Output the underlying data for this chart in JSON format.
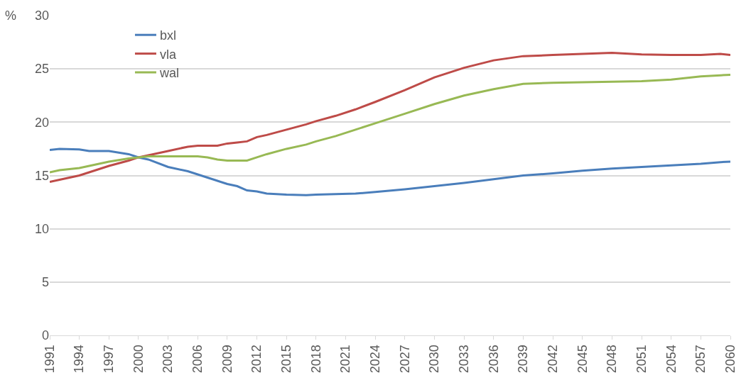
{
  "chart_data": {
    "type": "line",
    "ylabel": "%",
    "x": [
      1991,
      1992,
      1994,
      1995,
      1997,
      1999,
      2000,
      2001,
      2003,
      2005,
      2006,
      2007,
      2008,
      2009,
      2010,
      2011,
      2012,
      2013,
      2015,
      2017,
      2018,
      2020,
      2022,
      2024,
      2027,
      2030,
      2033,
      2036,
      2039,
      2042,
      2045,
      2048,
      2051,
      2054,
      2057,
      2059,
      2060
    ],
    "series": [
      {
        "name": "bxl",
        "color": "#4a7ebb",
        "values": [
          17.4,
          17.5,
          17.45,
          17.3,
          17.3,
          17.0,
          16.7,
          16.5,
          15.8,
          15.4,
          15.1,
          14.8,
          14.5,
          14.2,
          14.0,
          13.6,
          13.5,
          13.3,
          13.2,
          13.15,
          13.2,
          13.25,
          13.3,
          13.45,
          13.7,
          14.0,
          14.3,
          14.65,
          15.0,
          15.2,
          15.45,
          15.65,
          15.8,
          15.95,
          16.1,
          16.25,
          16.3
        ]
      },
      {
        "name": "vla",
        "color": "#be4b48",
        "values": [
          14.4,
          14.6,
          15.0,
          15.3,
          15.9,
          16.4,
          16.7,
          16.9,
          17.3,
          17.7,
          17.8,
          17.8,
          17.8,
          18.0,
          18.1,
          18.2,
          18.6,
          18.8,
          19.3,
          19.8,
          20.1,
          20.6,
          21.2,
          21.9,
          23.0,
          24.2,
          25.1,
          25.8,
          26.2,
          26.3,
          26.4,
          26.5,
          26.35,
          26.3,
          26.3,
          26.4,
          26.3
        ]
      },
      {
        "name": "wal",
        "color": "#98b954",
        "values": [
          15.3,
          15.5,
          15.7,
          15.9,
          16.3,
          16.6,
          16.7,
          16.8,
          16.8,
          16.8,
          16.8,
          16.7,
          16.5,
          16.4,
          16.4,
          16.4,
          16.7,
          17.0,
          17.5,
          17.9,
          18.2,
          18.7,
          19.3,
          19.9,
          20.8,
          21.7,
          22.5,
          23.1,
          23.6,
          23.7,
          23.75,
          23.8,
          23.85,
          24.0,
          24.3,
          24.4,
          24.45
        ]
      }
    ],
    "xlim": [
      1991,
      2060
    ],
    "xticks": [
      1991,
      1994,
      1997,
      2000,
      2003,
      2006,
      2009,
      2012,
      2015,
      2018,
      2021,
      2024,
      2027,
      2030,
      2033,
      2036,
      2039,
      2042,
      2045,
      2048,
      2051,
      2054,
      2057,
      2060
    ],
    "ylim": [
      0,
      30
    ],
    "yticks": [
      0,
      5,
      10,
      15,
      20,
      25,
      30
    ],
    "grid": "y",
    "legend": "top left",
    "line_style": "solid",
    "marker": "none"
  }
}
